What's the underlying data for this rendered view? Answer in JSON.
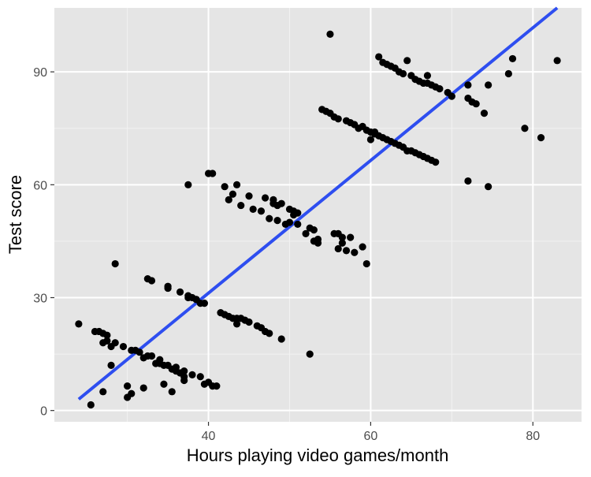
{
  "chart_data": {
    "type": "scatter",
    "xlabel": "Hours playing video games/month",
    "ylabel": "Test score",
    "xlim": [
      21,
      86
    ],
    "ylim": [
      -3,
      107
    ],
    "x_ticks": [
      40,
      60,
      80
    ],
    "x_minor_ticks": [
      30,
      50,
      70
    ],
    "y_ticks": [
      0,
      30,
      60,
      90
    ],
    "y_minor_ticks": [
      15,
      45,
      75
    ],
    "grid": true,
    "panel_color": "#e5e5e5",
    "point_color": "#000000",
    "trend_color": "#2e4ef0",
    "trend_line": {
      "x": [
        24,
        83
      ],
      "y": [
        3,
        107
      ]
    },
    "points": [
      [
        24,
        23
      ],
      [
        25.5,
        1.5
      ],
      [
        26,
        21
      ],
      [
        26.5,
        21
      ],
      [
        27,
        20.5
      ],
      [
        27,
        5
      ],
      [
        27,
        18
      ],
      [
        27.5,
        18.5
      ],
      [
        27.5,
        20
      ],
      [
        28,
        17
      ],
      [
        28,
        12
      ],
      [
        28.5,
        39
      ],
      [
        28.5,
        18
      ],
      [
        29.5,
        17
      ],
      [
        30,
        6.5
      ],
      [
        30,
        3.5
      ],
      [
        30.5,
        4.5
      ],
      [
        30.5,
        16
      ],
      [
        31,
        16
      ],
      [
        31.5,
        15.5
      ],
      [
        32,
        14
      ],
      [
        32,
        6
      ],
      [
        32.5,
        14.5
      ],
      [
        32.5,
        35
      ],
      [
        33,
        34.5
      ],
      [
        33,
        14.5
      ],
      [
        33.5,
        12.5
      ],
      [
        34,
        13.5
      ],
      [
        34,
        12.5
      ],
      [
        34.5,
        12
      ],
      [
        34.5,
        7
      ],
      [
        35,
        12
      ],
      [
        35,
        32.5
      ],
      [
        35,
        33
      ],
      [
        35.5,
        11
      ],
      [
        35.5,
        5
      ],
      [
        36,
        10.5
      ],
      [
        36,
        11.5
      ],
      [
        36.5,
        10
      ],
      [
        36.5,
        31.5
      ],
      [
        37,
        8
      ],
      [
        37,
        10.5
      ],
      [
        37,
        9
      ],
      [
        37.5,
        60
      ],
      [
        37.5,
        30
      ],
      [
        37.5,
        30.5
      ],
      [
        38,
        30
      ],
      [
        38,
        9.5
      ],
      [
        38.5,
        29.5
      ],
      [
        38.5,
        29.5
      ],
      [
        39,
        9
      ],
      [
        39,
        28.5
      ],
      [
        39.5,
        7
      ],
      [
        39.5,
        28.5
      ],
      [
        40,
        7.5
      ],
      [
        40,
        63
      ],
      [
        40.5,
        63
      ],
      [
        40.5,
        6.5
      ],
      [
        41,
        6.5
      ],
      [
        41.5,
        26
      ],
      [
        42,
        25.5
      ],
      [
        42,
        59.5
      ],
      [
        42.5,
        25
      ],
      [
        42.5,
        56
      ],
      [
        43,
        24.5
      ],
      [
        43,
        57.5
      ],
      [
        43.5,
        23
      ],
      [
        43.5,
        24.5
      ],
      [
        43.5,
        60
      ],
      [
        44,
        24.5
      ],
      [
        44,
        54.5
      ],
      [
        44.5,
        24
      ],
      [
        45,
        57
      ],
      [
        45,
        23.5
      ],
      [
        45.5,
        53.5
      ],
      [
        46,
        22.5
      ],
      [
        46.5,
        53
      ],
      [
        46.5,
        22
      ],
      [
        47,
        56.5
      ],
      [
        47,
        21
      ],
      [
        47.5,
        20.5
      ],
      [
        47.5,
        51
      ],
      [
        48,
        56
      ],
      [
        48,
        55
      ],
      [
        48.5,
        50.5
      ],
      [
        48.5,
        54.5
      ],
      [
        49,
        55
      ],
      [
        49,
        19
      ],
      [
        49.5,
        49.5
      ],
      [
        50,
        53.5
      ],
      [
        50,
        50
      ],
      [
        50.5,
        53
      ],
      [
        50.5,
        52
      ],
      [
        51,
        49.5
      ],
      [
        51,
        52.5
      ],
      [
        52,
        47
      ],
      [
        52.5,
        48.5
      ],
      [
        52.5,
        15
      ],
      [
        53,
        48
      ],
      [
        53,
        45
      ],
      [
        53.5,
        44.5
      ],
      [
        53.5,
        45.5
      ],
      [
        54,
        80
      ],
      [
        54.5,
        79.5
      ],
      [
        55,
        79
      ],
      [
        55,
        100
      ],
      [
        55.5,
        78
      ],
      [
        55.5,
        47
      ],
      [
        56,
        43
      ],
      [
        56,
        77.5
      ],
      [
        56,
        47
      ],
      [
        56.5,
        46
      ],
      [
        56.5,
        44.5
      ],
      [
        57,
        77
      ],
      [
        57,
        42.5
      ],
      [
        57.5,
        76.5
      ],
      [
        57.5,
        46
      ],
      [
        58,
        76
      ],
      [
        58,
        42
      ],
      [
        58.5,
        75
      ],
      [
        59,
        43.5
      ],
      [
        59,
        75.5
      ],
      [
        59.5,
        74.5
      ],
      [
        59.5,
        39
      ],
      [
        60,
        74
      ],
      [
        60,
        72
      ],
      [
        60.5,
        73.5
      ],
      [
        60.5,
        74
      ],
      [
        61,
        73
      ],
      [
        61,
        94
      ],
      [
        61.5,
        72.5
      ],
      [
        61.5,
        92.5
      ],
      [
        62,
        72
      ],
      [
        62,
        92
      ],
      [
        62.5,
        71.5
      ],
      [
        62.5,
        91.5
      ],
      [
        63,
        71
      ],
      [
        63,
        91
      ],
      [
        63.5,
        70.5
      ],
      [
        63.5,
        90
      ],
      [
        64,
        70
      ],
      [
        64,
        89.5
      ],
      [
        64.5,
        69
      ],
      [
        64.5,
        93
      ],
      [
        65,
        69
      ],
      [
        65,
        89
      ],
      [
        65.5,
        68.5
      ],
      [
        65.5,
        88
      ],
      [
        66,
        68
      ],
      [
        66,
        87.5
      ],
      [
        66.5,
        67.5
      ],
      [
        66.5,
        87
      ],
      [
        67,
        67
      ],
      [
        67,
        89
      ],
      [
        67,
        87
      ],
      [
        67.5,
        66.5
      ],
      [
        67.5,
        86.5
      ],
      [
        68,
        66
      ],
      [
        68,
        86
      ],
      [
        68.5,
        85.5
      ],
      [
        69.5,
        84.5
      ],
      [
        70,
        83.5
      ],
      [
        72,
        86.5
      ],
      [
        72,
        83
      ],
      [
        72,
        61
      ],
      [
        72.5,
        82
      ],
      [
        73,
        81.5
      ],
      [
        74,
        79
      ],
      [
        74.5,
        59.5
      ],
      [
        74.5,
        86.5
      ],
      [
        77,
        89.5
      ],
      [
        77.5,
        93.5
      ],
      [
        79,
        75
      ],
      [
        81,
        72.5
      ],
      [
        83,
        93
      ]
    ]
  }
}
